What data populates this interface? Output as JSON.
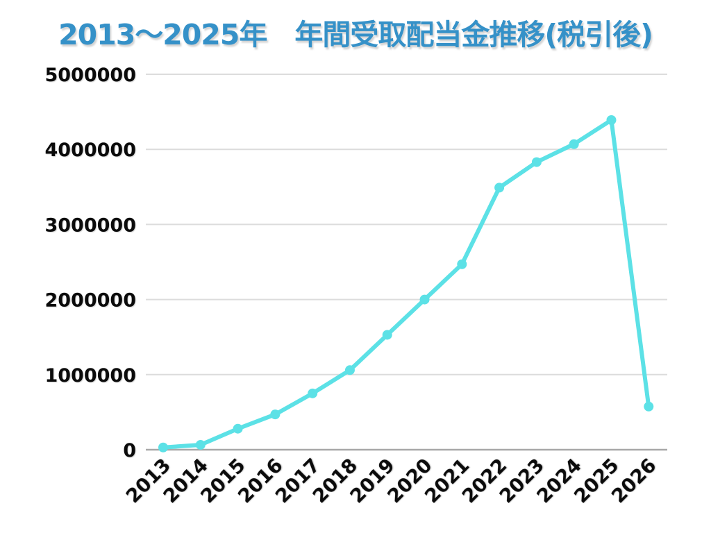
{
  "title": "2013〜2025年　年間受取配当金推移(税引後)",
  "colors": {
    "title_text": "#3591C8",
    "line": "#5CE1E6",
    "marker": "#5CE1E6",
    "gridline": "#DCDCDC",
    "axis_line": "#A8A8A8",
    "tick_text": "#0B0B0B",
    "background": "#FFFFFF"
  },
  "chart_data": {
    "type": "line",
    "title": "2013〜2025年　年間受取配当金推移(税引後)",
    "categories": [
      "2013",
      "2014",
      "2015",
      "2016",
      "2017",
      "2018",
      "2019",
      "2020",
      "2021",
      "2022",
      "2023",
      "2024",
      "2025",
      "2026"
    ],
    "values": [
      30000,
      65000,
      280000,
      470000,
      750000,
      1060000,
      1530000,
      2000000,
      2470000,
      3490000,
      3830000,
      4070000,
      4390000,
      575000
    ],
    "xlabel": "",
    "ylabel": "",
    "ylim": [
      0,
      5000000
    ],
    "yticks": [
      0,
      1000000,
      2000000,
      3000000,
      4000000,
      5000000
    ],
    "ytick_labels": [
      "0",
      "1000000",
      "2000000",
      "3000000",
      "4000000",
      "5000000"
    ],
    "grid": true,
    "legend": false,
    "marker": "circle",
    "line_width": 6,
    "marker_radius": 7
  }
}
